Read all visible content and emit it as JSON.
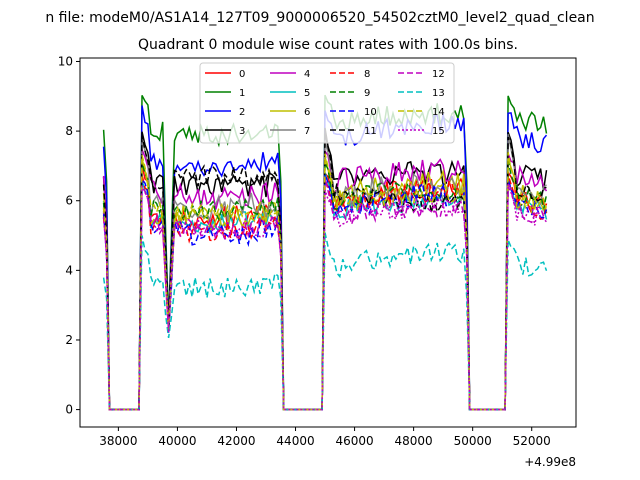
{
  "chart_data": {
    "type": "line",
    "suptitle": "n file: modeM0/AS1A14_127T09_9000006520_54502cztM0_level2_quad_clean",
    "title": "Quadrant 0 module wise count rates with 100.0s bins.",
    "xlabel": "",
    "ylabel": "",
    "xlim": [
      36700,
      53500
    ],
    "ylim": [
      -0.5,
      10.1
    ],
    "x_offset_label": "+4.99e8",
    "xticks": [
      38000,
      40000,
      42000,
      44000,
      46000,
      48000,
      50000,
      52000
    ],
    "xtick_labels": [
      "38000",
      "40000",
      "42000",
      "44000",
      "46000",
      "48000",
      "50000",
      "52000"
    ],
    "yticks": [
      0,
      2,
      4,
      6,
      8,
      10
    ],
    "ytick_labels": [
      "0",
      "2",
      "4",
      "6",
      "8",
      "10"
    ],
    "legend_position": "top-center",
    "legend_columns": 4,
    "x_start": 37500,
    "x_step": 100,
    "point_count": 151,
    "series": [
      {
        "name": "0",
        "color": "#ff0000",
        "dash": "solid",
        "base": 5.9,
        "trend": -0.4,
        "noise": 0.35,
        "peak": 7.2
      },
      {
        "name": "1",
        "color": "#008000",
        "dash": "solid",
        "base": 8.2,
        "trend": -0.3,
        "noise": 0.3,
        "peak": 9.3
      },
      {
        "name": "2",
        "color": "#0000ff",
        "dash": "solid",
        "base": 7.6,
        "trend": -0.6,
        "noise": 0.3,
        "peak": 8.9
      },
      {
        "name": "3",
        "color": "#000000",
        "dash": "solid",
        "base": 6.6,
        "trend": -0.2,
        "noise": 0.35,
        "peak": 8.4
      },
      {
        "name": "4",
        "color": "#bf00bf",
        "dash": "solid",
        "base": 6.5,
        "trend": -0.4,
        "noise": 0.35,
        "peak": 7.6
      },
      {
        "name": "5",
        "color": "#00bfbf",
        "dash": "solid",
        "base": 5.7,
        "trend": -0.3,
        "noise": 0.3,
        "peak": 6.9
      },
      {
        "name": "6",
        "color": "#bfbf00",
        "dash": "solid",
        "base": 6.0,
        "trend": -0.5,
        "noise": 0.35,
        "peak": 7.4
      },
      {
        "name": "7",
        "color": "#808080",
        "dash": "solid",
        "base": 6.1,
        "trend": -0.3,
        "noise": 0.4,
        "peak": 8.2
      },
      {
        "name": "8",
        "color": "#ff0000",
        "dash": "dashed",
        "base": 5.7,
        "trend": -0.6,
        "noise": 0.3,
        "peak": 6.9
      },
      {
        "name": "9",
        "color": "#008000",
        "dash": "dashed",
        "base": 6.0,
        "trend": -0.3,
        "noise": 0.3,
        "peak": 7.3
      },
      {
        "name": "10",
        "color": "#0000ff",
        "dash": "dashed",
        "base": 5.6,
        "trend": -0.6,
        "noise": 0.35,
        "peak": 7.0
      },
      {
        "name": "11",
        "color": "#000000",
        "dash": "dashed",
        "base": 6.3,
        "trend": 0.4,
        "noise": 0.3,
        "peak": 8.3
      },
      {
        "name": "12",
        "color": "#bf00bf",
        "dash": "dashed",
        "base": 5.5,
        "trend": -0.3,
        "noise": 0.3,
        "peak": 6.8
      },
      {
        "name": "13",
        "color": "#00bfbf",
        "dash": "dashed",
        "base": 4.0,
        "trend": -0.5,
        "noise": 0.3,
        "peak": 5.2
      },
      {
        "name": "14",
        "color": "#bfbf00",
        "dash": "dashed",
        "base": 5.9,
        "trend": -0.3,
        "noise": 0.3,
        "peak": 7.8
      },
      {
        "name": "15",
        "color": "#bf00bf",
        "dash": "dotted",
        "base": 5.5,
        "trend": -0.3,
        "noise": 0.3,
        "peak": 6.6
      }
    ],
    "saa_gaps": [
      {
        "start": 37700,
        "end": 38700
      },
      {
        "start": 43600,
        "end": 44900
      },
      {
        "start": 49900,
        "end": 51100
      }
    ],
    "dip_near": 39700
  }
}
